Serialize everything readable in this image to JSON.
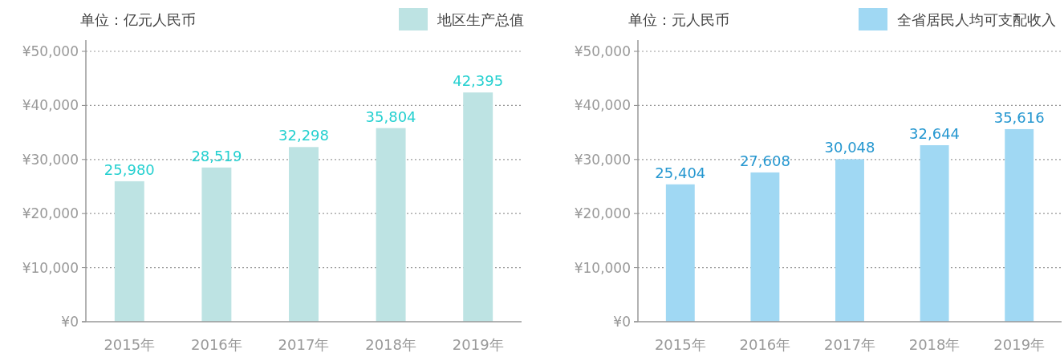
{
  "chart_data": [
    {
      "type": "bar",
      "ylabel": "单位：亿元人民币",
      "categories": [
        "2015年",
        "2016年",
        "2017年",
        "2018年",
        "2019年"
      ],
      "series": [
        {
          "name": "地区生产总值",
          "color": "#bde3e3",
          "values": [
            25980,
            28519,
            32298,
            35804,
            42395
          ],
          "value_labels": [
            "25,980",
            "28,519",
            "32,298",
            "35,804",
            "42,395"
          ]
        }
      ],
      "ylim": [
        0,
        50000
      ],
      "yticks": [
        {
          "value": 0,
          "label": "¥0"
        },
        {
          "value": 10000,
          "label": "¥10,000"
        },
        {
          "value": 20000,
          "label": "¥20,000"
        },
        {
          "value": 30000,
          "label": "¥30,000"
        },
        {
          "value": 40000,
          "label": "¥40,000"
        },
        {
          "value": 50000,
          "label": "¥50,000"
        }
      ],
      "grid": "y",
      "legend": "top right"
    },
    {
      "type": "bar",
      "ylabel": "单位：元人民币",
      "categories": [
        "2015年",
        "2016年",
        "2017年",
        "2018年",
        "2019年"
      ],
      "series": [
        {
          "name": "全省居民人均可支配收入",
          "color": "#a0d8f3",
          "values": [
            25404,
            27608,
            30048,
            32644,
            35616
          ],
          "value_labels": [
            "25,404",
            "27,608",
            "30,048",
            "32,644",
            "35,616"
          ]
        }
      ],
      "ylim": [
        0,
        50000
      ],
      "yticks": [
        {
          "value": 0,
          "label": "¥0"
        },
        {
          "value": 10000,
          "label": "¥10,000"
        },
        {
          "value": 20000,
          "label": "¥20,000"
        },
        {
          "value": 30000,
          "label": "¥30,000"
        },
        {
          "value": 40000,
          "label": "¥40,000"
        },
        {
          "value": 50000,
          "label": "¥50,000"
        }
      ],
      "grid": "y",
      "legend": "top right"
    }
  ]
}
